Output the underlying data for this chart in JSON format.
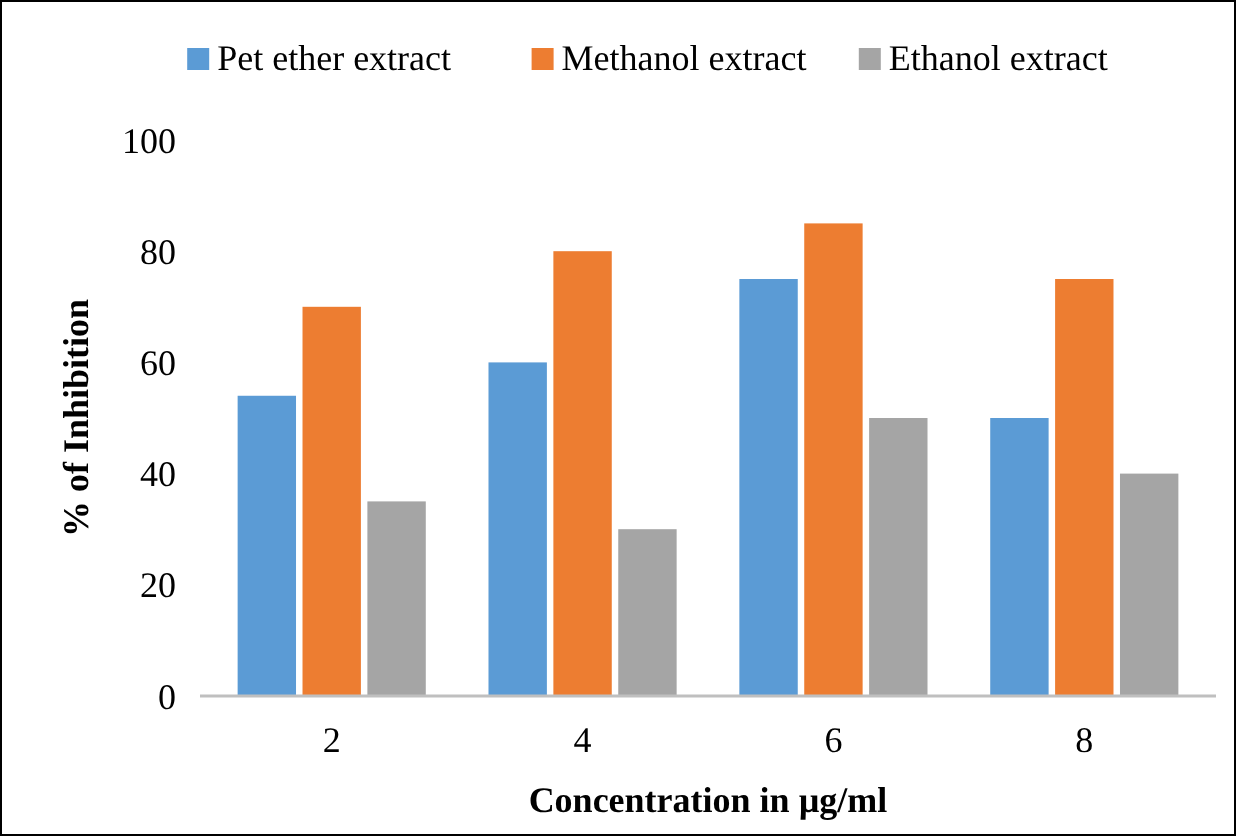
{
  "chart_data": {
    "type": "bar",
    "xlabel": "Concentration in µg/ml",
    "ylabel": "% of Inhibition",
    "categories": [
      "2",
      "4",
      "6",
      "8"
    ],
    "series": [
      {
        "name": "Pet ether extract",
        "color": "#5b9bd5",
        "values": [
          54,
          60,
          75,
          50
        ]
      },
      {
        "name": "Methanol extract",
        "color": "#ed7d31",
        "values": [
          70,
          80,
          85,
          75
        ]
      },
      {
        "name": "Ethanol extract",
        "color": "#a5a5a5",
        "values": [
          35,
          30,
          50,
          40
        ]
      }
    ],
    "ylim": [
      0,
      100
    ],
    "yticks": [
      0,
      20,
      40,
      60,
      80,
      100
    ],
    "grid": false,
    "legend": "top"
  }
}
